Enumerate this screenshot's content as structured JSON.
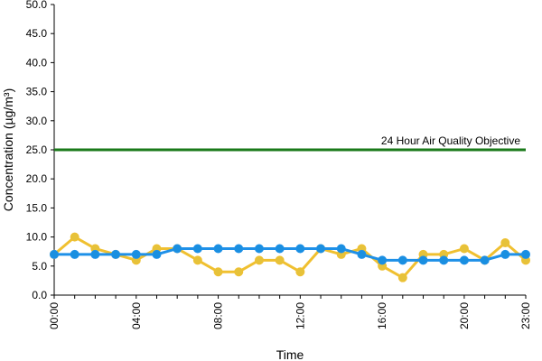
{
  "chart_data": {
    "type": "line",
    "xlabel": "Time",
    "ylabel": "Concentration (µg/m³)",
    "ylim": [
      0,
      50
    ],
    "y_tick_step": 5,
    "x": [
      0,
      1,
      2,
      3,
      4,
      5,
      6,
      7,
      8,
      9,
      10,
      11,
      12,
      13,
      14,
      15,
      16,
      17,
      18,
      19,
      20,
      21,
      22,
      23
    ],
    "x_tick_labels": [
      {
        "x": 0,
        "label": "00:00"
      },
      {
        "x": 4,
        "label": "04:00"
      },
      {
        "x": 8,
        "label": "08:00"
      },
      {
        "x": 12,
        "label": "12:00"
      },
      {
        "x": 16,
        "label": "16:00"
      },
      {
        "x": 20,
        "label": "20:00"
      },
      {
        "x": 23,
        "label": "23:00"
      }
    ],
    "grid": false,
    "series": [
      {
        "color": "#f0c030",
        "marker_fill": "#e6c23a",
        "values": [
          7,
          10,
          8,
          7,
          6,
          8,
          8,
          6,
          4,
          4,
          6,
          6,
          4,
          8,
          7,
          8,
          5,
          3,
          7,
          7,
          8,
          6,
          9,
          6
        ]
      },
      {
        "color": "#1e90e8",
        "marker_fill": "#1a8fe0",
        "values": [
          7,
          7,
          7,
          7,
          7,
          7,
          8,
          8,
          8,
          8,
          8,
          8,
          8,
          8,
          8,
          7,
          6,
          6,
          6,
          6,
          6,
          6,
          7,
          7
        ]
      }
    ],
    "reference_line": {
      "value": 25,
      "label": "24 Hour Air Quality Objective",
      "color": "#1a7a1a"
    }
  }
}
